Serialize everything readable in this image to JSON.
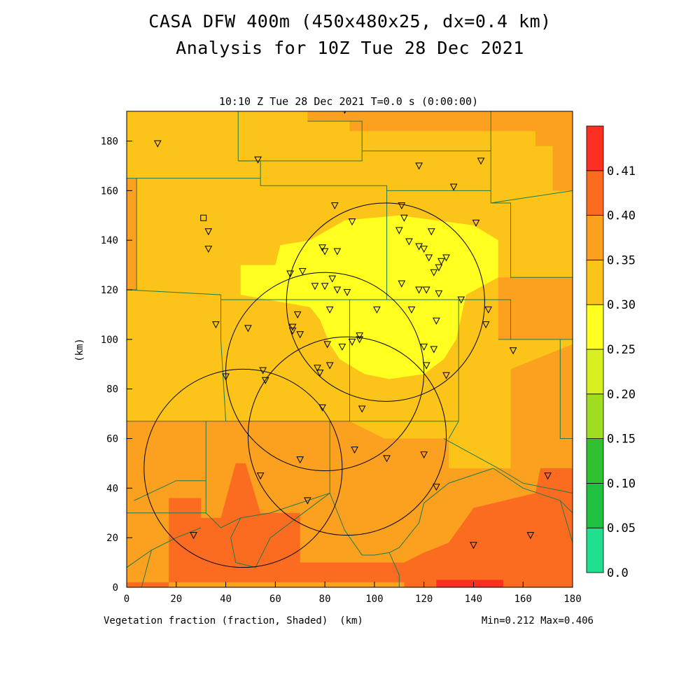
{
  "title_line1": "CASA DFW 400m (450x480x25, dx=0.4 km)",
  "title_line2": "Analysis for 10Z Tue 28 Dec 2021",
  "subtitle": "10:10 Z Tue 28 Dec 2021   T=0.0 s (0:00:00)",
  "xlabel": "(km)",
  "ylabel": "(km)",
  "field_label": "Vegetation fraction (fraction, Shaded)",
  "minmax": "Min=0.212 Max=0.406",
  "chart_data": {
    "type": "heatmap",
    "xlim": [
      0,
      180
    ],
    "ylim": [
      0,
      192
    ],
    "x_ticks": [
      "0",
      "20",
      "40",
      "60",
      "80",
      "100",
      "120",
      "140",
      "160",
      "180"
    ],
    "y_ticks": [
      "0",
      "20",
      "40",
      "60",
      "80",
      "100",
      "120",
      "140",
      "160",
      "180"
    ],
    "colorbar": {
      "levels": [
        "0.0",
        "0.05",
        "0.10",
        "0.15",
        "0.20",
        "0.25",
        "0.30",
        "0.35",
        "0.40",
        "0.41"
      ],
      "colors": [
        "#20e090",
        "#20c040",
        "#30c030",
        "#a0dc20",
        "#d8f020",
        "#ffff20",
        "#fcc418",
        "#fca020",
        "#fc6c20",
        "#fc3020"
      ]
    },
    "regions": [
      {
        "level": 0.28,
        "color": "#fcc418",
        "poly": [
          [
            0,
            192
          ],
          [
            180,
            192
          ],
          [
            180,
            0
          ],
          [
            0,
            0
          ]
        ]
      },
      {
        "level": 0.32,
        "color": "#fca020",
        "poly": [
          [
            0,
            67
          ],
          [
            90,
            67
          ],
          [
            104,
            60
          ],
          [
            130,
            60
          ],
          [
            130,
            48
          ],
          [
            155,
            48
          ],
          [
            155,
            88
          ],
          [
            180,
            98
          ],
          [
            180,
            0
          ],
          [
            0,
            0
          ]
        ]
      },
      {
        "level": 0.32,
        "color": "#fca020",
        "poly": [
          [
            73,
            188
          ],
          [
            90,
            188
          ],
          [
            90,
            184
          ],
          [
            165,
            184
          ],
          [
            165,
            178
          ],
          [
            172,
            178
          ],
          [
            172,
            160
          ],
          [
            180,
            160
          ],
          [
            180,
            192
          ],
          [
            73,
            192
          ]
        ]
      },
      {
        "level": 0.32,
        "color": "#fca020",
        "poly": [
          [
            150,
            125
          ],
          [
            180,
            125
          ],
          [
            180,
            100
          ],
          [
            150,
            100
          ]
        ]
      },
      {
        "level": 0.32,
        "color": "#fca020",
        "poly": [
          [
            0,
            165
          ],
          [
            4,
            165
          ],
          [
            4,
            120
          ],
          [
            0,
            120
          ]
        ]
      },
      {
        "level": 0.37,
        "color": "#fc6c20",
        "poly": [
          [
            17,
            36
          ],
          [
            30,
            36
          ],
          [
            30,
            28
          ],
          [
            38,
            28
          ],
          [
            44,
            50
          ],
          [
            48,
            50
          ],
          [
            54,
            30
          ],
          [
            70,
            30
          ],
          [
            70,
            10
          ],
          [
            115,
            10
          ],
          [
            112,
            2
          ],
          [
            0,
            2
          ],
          [
            0,
            0
          ],
          [
            17,
            0
          ]
        ]
      },
      {
        "level": 0.37,
        "color": "#fc6c20",
        "poly": [
          [
            112,
            2
          ],
          [
            112,
            10
          ],
          [
            120,
            14
          ],
          [
            130,
            18
          ],
          [
            140,
            32
          ],
          [
            165,
            38
          ],
          [
            167,
            48
          ],
          [
            180,
            48
          ],
          [
            180,
            0
          ],
          [
            112,
            0
          ]
        ]
      },
      {
        "level": 0.41,
        "color": "#fc3020",
        "poly": [
          [
            125,
            3
          ],
          [
            152,
            3
          ],
          [
            152,
            0
          ],
          [
            125,
            0
          ]
        ]
      },
      {
        "level": 0.22,
        "color": "#ffff20",
        "poly": [
          [
            46,
            130
          ],
          [
            60,
            130
          ],
          [
            62,
            138
          ],
          [
            74,
            140
          ],
          [
            88,
            148
          ],
          [
            110,
            150
          ],
          [
            125,
            148
          ],
          [
            140,
            146
          ],
          [
            150,
            140
          ],
          [
            150,
            125
          ],
          [
            137,
            118
          ],
          [
            133,
            100
          ],
          [
            128,
            92
          ],
          [
            120,
            86
          ],
          [
            106,
            84
          ],
          [
            96,
            86
          ],
          [
            86,
            92
          ],
          [
            82,
            98
          ],
          [
            78,
            108
          ],
          [
            74,
            113
          ],
          [
            46,
            118
          ]
        ]
      }
    ],
    "circles": [
      {
        "cx": 104.5,
        "cy": 115,
        "r": 40
      },
      {
        "cx": 80,
        "cy": 87,
        "r": 40
      },
      {
        "cx": 89,
        "cy": 61,
        "r": 40
      },
      {
        "cx": 47,
        "cy": 48,
        "r": 40
      }
    ],
    "boundaries": [
      [
        [
          0,
          165
        ],
        [
          4,
          165
        ],
        [
          4,
          120
        ],
        [
          0,
          120
        ]
      ],
      [
        [
          4,
          165
        ],
        [
          54,
          165
        ],
        [
          54,
          162
        ],
        [
          105,
          162
        ],
        [
          105,
          160
        ],
        [
          147,
          160
        ]
      ],
      [
        [
          0,
          120
        ],
        [
          38,
          118
        ],
        [
          38,
          116
        ],
        [
          38,
          100
        ],
        [
          40,
          67
        ]
      ],
      [
        [
          38,
          116
        ],
        [
          130,
          116
        ],
        [
          155,
          116
        ],
        [
          155,
          100
        ],
        [
          150,
          100
        ]
      ],
      [
        [
          0,
          67
        ],
        [
          90,
          67
        ],
        [
          90,
          116
        ]
      ],
      [
        [
          90,
          67
        ],
        [
          130,
          67
        ],
        [
          134,
          67
        ],
        [
          134,
          116
        ]
      ],
      [
        [
          105,
          160
        ],
        [
          105,
          116
        ]
      ],
      [
        [
          54,
          165
        ],
        [
          54,
          172
        ],
        [
          45,
          172
        ]
      ],
      [
        [
          45,
          172
        ],
        [
          45,
          192
        ]
      ],
      [
        [
          45,
          172
        ],
        [
          95,
          172
        ],
        [
          95,
          188
        ],
        [
          73,
          188
        ]
      ],
      [
        [
          95,
          176
        ],
        [
          147,
          176
        ],
        [
          147,
          192
        ]
      ],
      [
        [
          147,
          160
        ],
        [
          147,
          176
        ]
      ],
      [
        [
          147,
          160
        ],
        [
          147,
          155
        ],
        [
          180,
          160
        ]
      ],
      [
        [
          147,
          155
        ],
        [
          155,
          155
        ],
        [
          155,
          125
        ],
        [
          180,
          125
        ]
      ],
      [
        [
          155,
          100
        ],
        [
          180,
          100
        ],
        [
          180,
          100
        ]
      ],
      [
        [
          0,
          30
        ],
        [
          20,
          30
        ],
        [
          32,
          30
        ],
        [
          32,
          67
        ]
      ],
      [
        [
          3,
          35
        ],
        [
          20,
          43
        ],
        [
          32,
          43
        ]
      ],
      [
        [
          32,
          30
        ],
        [
          38,
          24
        ],
        [
          46,
          28
        ],
        [
          58,
          30
        ],
        [
          82,
          38
        ],
        [
          82,
          67
        ]
      ],
      [
        [
          46,
          28
        ],
        [
          42,
          20
        ],
        [
          44,
          10
        ],
        [
          52,
          8
        ],
        [
          58,
          20
        ],
        [
          82,
          38
        ]
      ],
      [
        [
          82,
          38
        ],
        [
          88,
          23
        ],
        [
          95,
          13
        ],
        [
          100,
          13
        ],
        [
          106,
          14
        ],
        [
          110,
          16
        ],
        [
          118,
          26
        ],
        [
          120,
          34
        ],
        [
          130,
          42
        ],
        [
          148,
          48
        ]
      ],
      [
        [
          106,
          14
        ],
        [
          110,
          5
        ],
        [
          110,
          0
        ]
      ],
      [
        [
          128,
          60
        ],
        [
          150,
          48
        ],
        [
          160,
          42
        ],
        [
          180,
          38
        ]
      ],
      [
        [
          148,
          48
        ],
        [
          160,
          40
        ],
        [
          175,
          35
        ],
        [
          180,
          30
        ]
      ],
      [
        [
          130,
          60
        ],
        [
          134,
          67
        ]
      ],
      [
        [
          0,
          8
        ],
        [
          10,
          15
        ],
        [
          20,
          20
        ],
        [
          30,
          24
        ]
      ],
      [
        [
          10,
          15
        ],
        [
          6,
          0
        ]
      ],
      [
        [
          175,
          35
        ],
        [
          180,
          18
        ],
        [
          180,
          10
        ]
      ],
      [
        [
          180,
          60
        ],
        [
          175,
          60
        ],
        [
          175,
          100
        ]
      ]
    ],
    "stations": [
      {
        "x": 12.5,
        "y": 179
      },
      {
        "x": 53,
        "y": 172.5
      },
      {
        "x": 118,
        "y": 170
      },
      {
        "x": 143,
        "y": 172
      },
      {
        "x": 88,
        "y": 192.5
      },
      {
        "x": 132,
        "y": 161.5
      },
      {
        "x": 84,
        "y": 154
      },
      {
        "x": 111,
        "y": 154
      },
      {
        "x": 112,
        "y": 149
      },
      {
        "x": 91,
        "y": 147.5
      },
      {
        "x": 141,
        "y": 147
      },
      {
        "x": 110,
        "y": 144
      },
      {
        "x": 123,
        "y": 143.5
      },
      {
        "x": 33,
        "y": 143.5
      },
      {
        "x": 114,
        "y": 139.5
      },
      {
        "x": 118,
        "y": 137.5
      },
      {
        "x": 79,
        "y": 137
      },
      {
        "x": 80,
        "y": 135.5
      },
      {
        "x": 85,
        "y": 135.5
      },
      {
        "x": 120,
        "y": 136.5
      },
      {
        "x": 33,
        "y": 136.5
      },
      {
        "x": 122,
        "y": 133
      },
      {
        "x": 129,
        "y": 133
      },
      {
        "x": 127,
        "y": 131.5
      },
      {
        "x": 126,
        "y": 129
      },
      {
        "x": 71,
        "y": 127.5
      },
      {
        "x": 66,
        "y": 126.5
      },
      {
        "x": 124,
        "y": 127
      },
      {
        "x": 83,
        "y": 124.5
      },
      {
        "x": 76,
        "y": 121.5
      },
      {
        "x": 80,
        "y": 121.5
      },
      {
        "x": 85,
        "y": 120
      },
      {
        "x": 89,
        "y": 119
      },
      {
        "x": 111,
        "y": 122.5
      },
      {
        "x": 118,
        "y": 120
      },
      {
        "x": 121,
        "y": 120
      },
      {
        "x": 126,
        "y": 118.5
      },
      {
        "x": 135,
        "y": 116
      },
      {
        "x": 69,
        "y": 110
      },
      {
        "x": 82,
        "y": 112
      },
      {
        "x": 101,
        "y": 112
      },
      {
        "x": 115,
        "y": 112
      },
      {
        "x": 146,
        "y": 112
      },
      {
        "x": 125,
        "y": 107.5
      },
      {
        "x": 36,
        "y": 106
      },
      {
        "x": 145,
        "y": 106
      },
      {
        "x": 49,
        "y": 104.5
      },
      {
        "x": 67,
        "y": 105
      },
      {
        "x": 67,
        "y": 103.5
      },
      {
        "x": 70,
        "y": 102
      },
      {
        "x": 94,
        "y": 101.5
      },
      {
        "x": 94,
        "y": 100
      },
      {
        "x": 91,
        "y": 99
      },
      {
        "x": 81,
        "y": 98
      },
      {
        "x": 87,
        "y": 97
      },
      {
        "x": 120,
        "y": 97
      },
      {
        "x": 124,
        "y": 96
      },
      {
        "x": 156,
        "y": 95.5
      },
      {
        "x": 82,
        "y": 89.5
      },
      {
        "x": 121,
        "y": 89.5
      },
      {
        "x": 77,
        "y": 88.5
      },
      {
        "x": 78,
        "y": 86.5
      },
      {
        "x": 55,
        "y": 87.5
      },
      {
        "x": 129,
        "y": 85.5
      },
      {
        "x": 40,
        "y": 85
      },
      {
        "x": 56,
        "y": 83.5
      },
      {
        "x": 79,
        "y": 72.5
      },
      {
        "x": 95,
        "y": 72
      },
      {
        "x": 92,
        "y": 55.5
      },
      {
        "x": 120,
        "y": 53.5
      },
      {
        "x": 105,
        "y": 52
      },
      {
        "x": 70,
        "y": 51.5
      },
      {
        "x": 54,
        "y": 45
      },
      {
        "x": 170,
        "y": 45
      },
      {
        "x": 125,
        "y": 40.5
      },
      {
        "x": 73,
        "y": 35
      },
      {
        "x": 27,
        "y": 21
      },
      {
        "x": 140,
        "y": 17
      },
      {
        "x": 163,
        "y": 21
      }
    ],
    "square_marker": {
      "x": 31,
      "y": 149
    }
  }
}
